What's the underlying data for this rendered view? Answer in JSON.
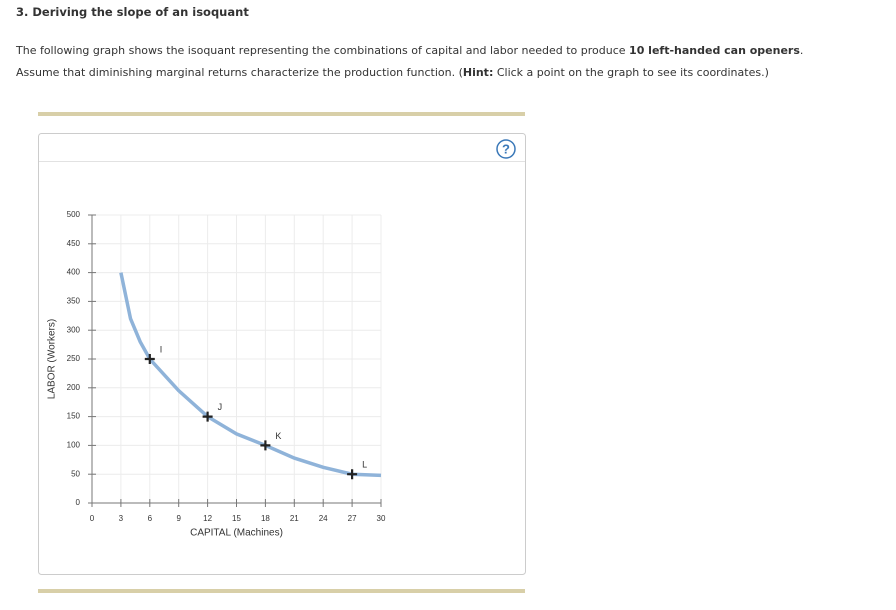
{
  "heading": "3. Deriving the slope of an isoquant",
  "paragraph": [
    {
      "text": "The following graph shows the isoquant representing the combinations of capital and labor needed to produce ",
      "bold": false
    },
    {
      "text": "10 left-handed can openers",
      "bold": true
    },
    {
      "text": ". Assume that diminishing marginal returns characterize the production function. (",
      "bold": false
    },
    {
      "text": "Hint:",
      "bold": true
    },
    {
      "text": " Click a point on the graph to see its coordinates.)",
      "bold": false
    }
  ],
  "help_icon": "?",
  "chart_data": {
    "type": "line",
    "x_label": "CAPITAL (Machines)",
    "y_label": "LABOR (Workers)",
    "xlim": [
      0,
      30
    ],
    "xticks": [
      0,
      3,
      6,
      9,
      12,
      15,
      18,
      21,
      24,
      27,
      30
    ],
    "ylim": [
      0,
      500
    ],
    "yticks": [
      0,
      50,
      100,
      150,
      200,
      250,
      300,
      350,
      400,
      450,
      500
    ],
    "grid": true,
    "curve": {
      "color": "#8fb3d9",
      "x": [
        3,
        4,
        5,
        6,
        9,
        12,
        15,
        18,
        21,
        24,
        27,
        30
      ],
      "y": [
        400,
        320,
        280,
        250,
        195,
        150,
        120,
        100,
        78,
        62,
        50,
        48
      ]
    },
    "points": {
      "color": "#222222",
      "labels": [
        "I",
        "J",
        "K",
        "L"
      ],
      "x": [
        6,
        12,
        18,
        27
      ],
      "y": [
        250,
        150,
        100,
        50
      ]
    }
  }
}
